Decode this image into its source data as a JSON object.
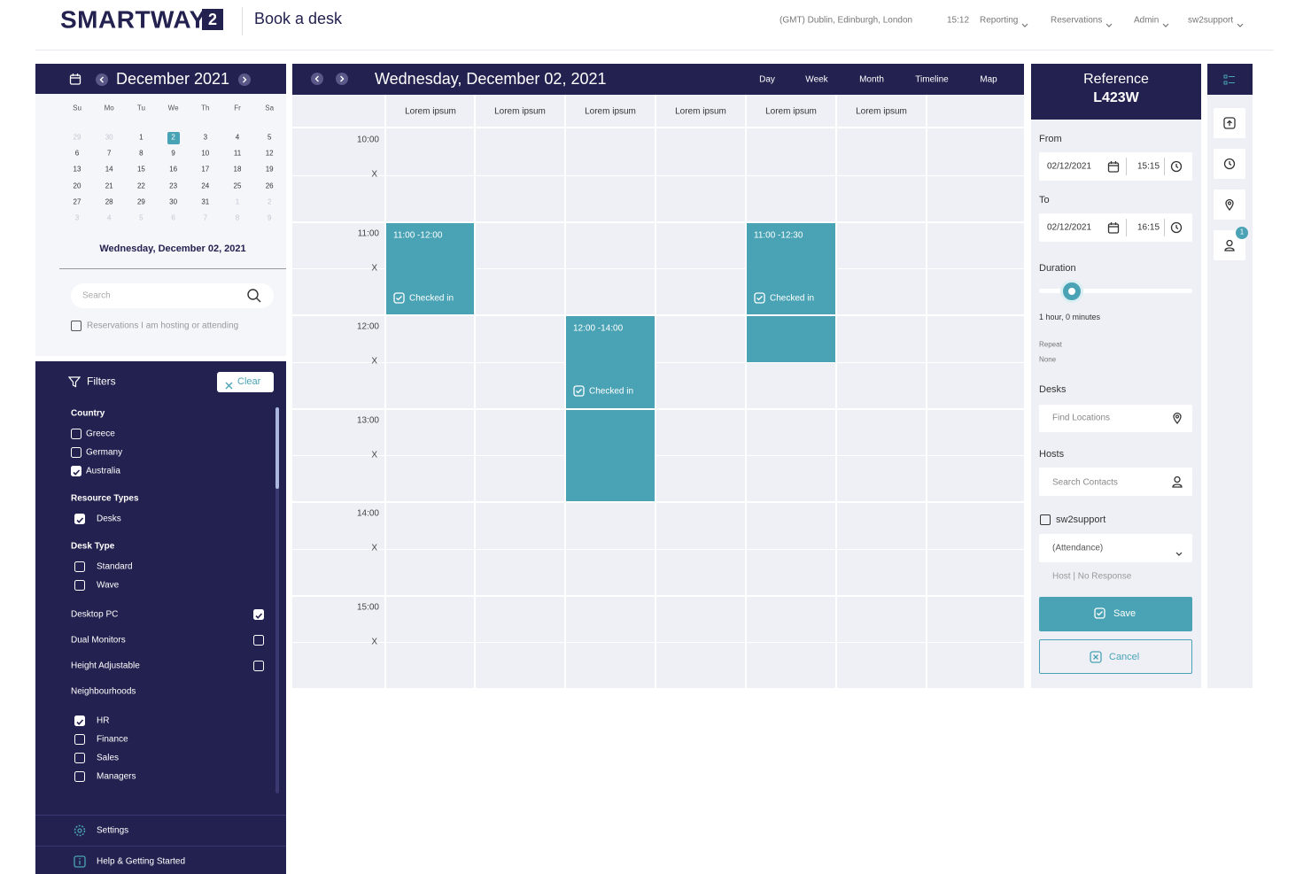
{
  "header": {
    "logo": "SMARTWAY",
    "logo_badge": "2",
    "page_title": "Book a desk",
    "timezone": "(GMT) Dublin, Edinburgh, London",
    "time": "15:12",
    "menu": [
      "Reporting",
      "Reservations",
      "Admin",
      "sw2support"
    ]
  },
  "calendar": {
    "month": "December 2021",
    "weekdays": [
      "Su",
      "Mo",
      "Tu",
      "We",
      "Th",
      "Fr",
      "Sa"
    ],
    "weeks": [
      [
        29,
        30,
        1,
        2,
        3,
        4,
        5
      ],
      [
        6,
        7,
        8,
        9,
        10,
        11,
        12
      ],
      [
        13,
        14,
        15,
        16,
        17,
        18,
        19
      ],
      [
        20,
        21,
        22,
        23,
        24,
        25,
        26
      ],
      [
        27,
        28,
        29,
        30,
        31,
        1,
        2
      ],
      [
        3,
        4,
        5,
        6,
        7,
        8,
        9
      ]
    ],
    "selected_day": 2,
    "selected_label": "Wednesday, December 02, 2021",
    "search_placeholder": "Search",
    "hosting_label": "Reservations I am hosting or attending"
  },
  "filters": {
    "title": "Filters",
    "clear": "Clear",
    "groups": [
      {
        "title": "Country",
        "items": [
          {
            "label": "Greece",
            "checked": false
          },
          {
            "label": "Germany",
            "checked": false
          },
          {
            "label": "Australia",
            "checked": true
          }
        ]
      },
      {
        "title": "Resource Types",
        "items": [
          {
            "label": "Desks",
            "checked": true
          }
        ]
      },
      {
        "title": "Desk Type",
        "items": [
          {
            "label": "Standard",
            "checked": false
          },
          {
            "label": "Wave",
            "checked": false
          }
        ]
      }
    ],
    "toggles": [
      {
        "label": "Desktop PC",
        "checked": true
      },
      {
        "label": "Dual Monitors",
        "checked": false
      },
      {
        "label": "Height Adjustable",
        "checked": false
      }
    ],
    "neighbourhoods": {
      "title": "Neighbourhoods",
      "items": [
        {
          "label": "HR",
          "checked": true
        },
        {
          "label": "Finance",
          "checked": false
        },
        {
          "label": "Sales",
          "checked": false
        },
        {
          "label": "Managers",
          "checked": false
        }
      ]
    },
    "footer": [
      "Settings",
      "Help & Getting Started"
    ]
  },
  "schedule": {
    "date": "Wednesday, December 02, 2021",
    "views": [
      "Day",
      "Week",
      "Month",
      "Timeline",
      "Map"
    ],
    "columns": [
      {
        "name": "Lorem ipsum",
        "bookings": [
          {
            "time": "11:00 -12:00",
            "status": "Checked in"
          }
        ]
      },
      {
        "name": "Lorem ipsum",
        "bookings": []
      },
      {
        "name": "Lorem ipsum",
        "bookings": [
          {
            "time": "12:00 -14:00",
            "status": "Checked in"
          }
        ]
      },
      {
        "name": "Lorem ipsum",
        "bookings": []
      },
      {
        "name": "Lorem ipsum",
        "bookings": [
          {
            "time": "11:00 -12:30",
            "status": "Checked in"
          }
        ]
      },
      {
        "name": "Lorem ipsum",
        "bookings": []
      }
    ],
    "rows": [
      {
        "time": "10:00",
        "half": "X"
      },
      {
        "time": "11:00",
        "half": "X"
      },
      {
        "time": "12:00",
        "half": "X"
      },
      {
        "time": "13:00",
        "half": "X"
      },
      {
        "time": "14:00",
        "half": "X"
      },
      {
        "time": "15:00",
        "half": "X"
      }
    ]
  },
  "booking_form": {
    "reference_label": "Reference",
    "reference": "L423W",
    "from_label": "From",
    "from_date": "02/12/2021",
    "from_time": "15:15",
    "to_label": "To",
    "to_date": "02/12/2021",
    "to_time": "16:15",
    "duration_label": "Duration",
    "duration_text": "1 hour, 0 minutes",
    "repeat_label": "Repeat",
    "repeat_value": "None",
    "desks_label": "Desks",
    "desks_placeholder": "Find Locations",
    "hosts_label": "Hosts",
    "hosts_placeholder": "Search Contacts",
    "host_name": "sw2support",
    "attendance": "(Attendance)",
    "host_status": "Host | No Response",
    "save": "Save",
    "cancel": "Cancel"
  },
  "toolbar": {
    "badge": "1"
  }
}
